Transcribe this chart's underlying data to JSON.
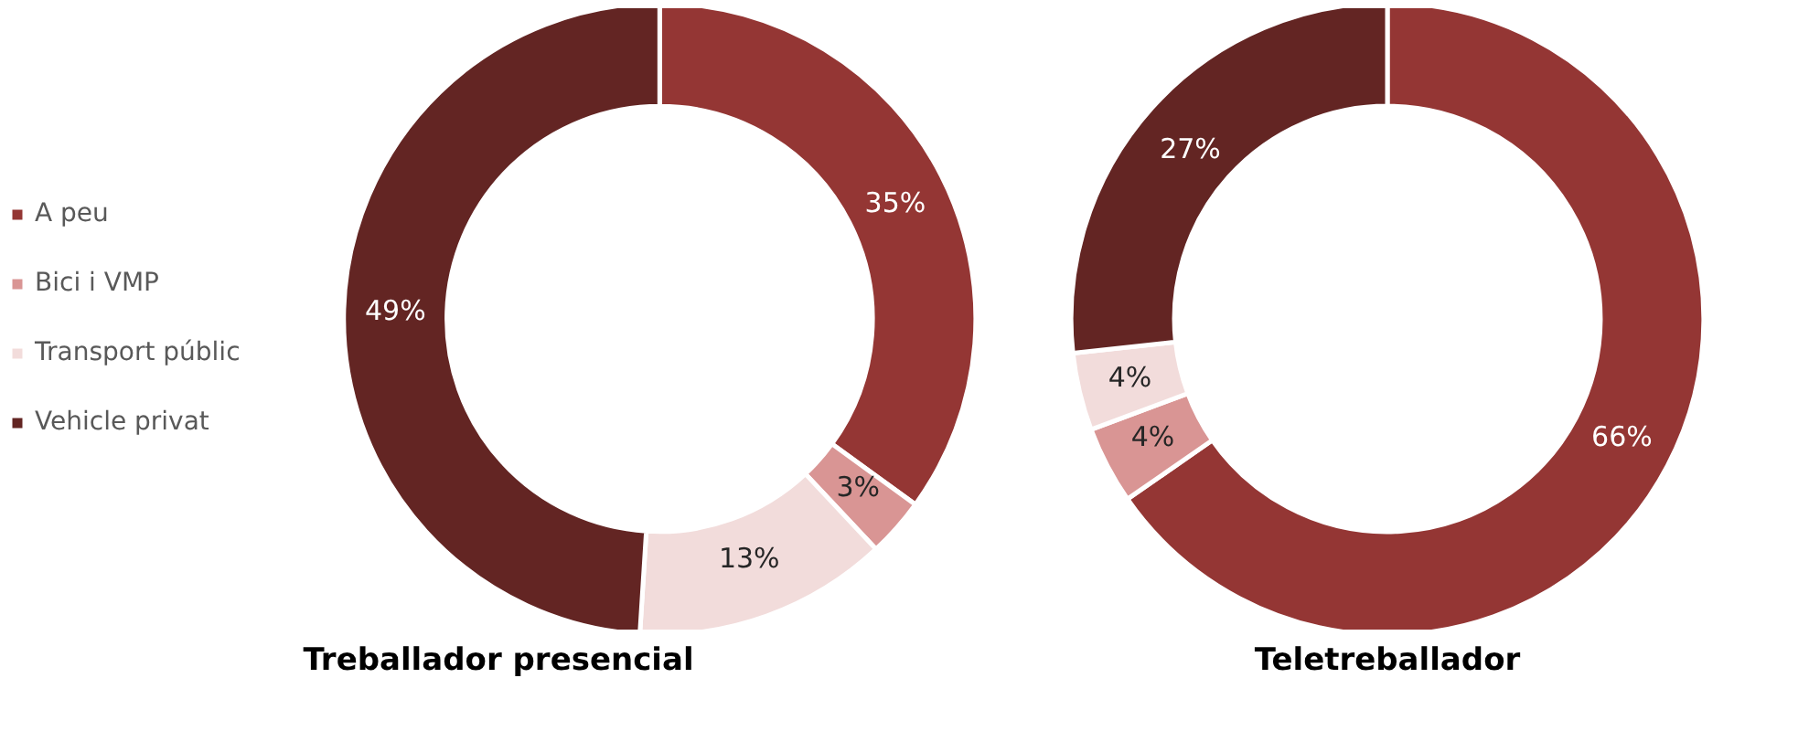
{
  "chart_data": [
    {
      "type": "donut",
      "title": "Treballador presencial",
      "categories": [
        "A peu",
        "Bici i VMP",
        "Transport públic",
        "Vehicle privat"
      ],
      "values": [
        35,
        3,
        13,
        49
      ],
      "colors": [
        "#943634",
        "#d99594",
        "#f2dcdb",
        "#632523"
      ],
      "value_labels": [
        "35%",
        "3%",
        "13%",
        "49%"
      ],
      "legend": "left"
    },
    {
      "type": "donut",
      "title": "Teletreballador",
      "values": [
        66,
        4,
        4,
        27
      ],
      "colors": [
        "#943634",
        "#d99594",
        "#f2dcdb",
        "#632523"
      ],
      "value_labels": [
        "66%",
        "4%",
        "4%",
        "27%"
      ]
    }
  ]
}
